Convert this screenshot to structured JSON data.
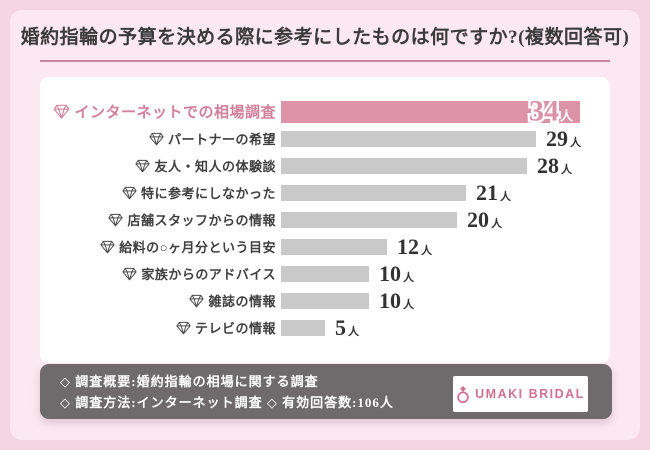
{
  "header": {
    "title": "婚約指輪の予算を決める際に参考にしたものは何ですか?(複数回答可)"
  },
  "chart_data": {
    "type": "bar",
    "orientation": "horizontal",
    "title": "婚約指輪の予算を決める際に参考にしたものは何ですか?(複数回答可)",
    "categories": [
      "インターネットでの相場調査",
      "パートナーの希望",
      "友人・知人の体験談",
      "特に参考にしなかった",
      "店舗スタッフからの情報",
      "給料の○ヶ月分という目安",
      "家族からのアドバイス",
      "雑誌の情報",
      "テレビの情報"
    ],
    "values": [
      34,
      29,
      28,
      21,
      20,
      12,
      10,
      10,
      5
    ],
    "unit": "人",
    "highlight_index": 0,
    "xlim": [
      0,
      34
    ],
    "legend_position": "none",
    "grid": false,
    "colors": {
      "highlight_bar": "#dc93a8",
      "bar": "#c9c9c9",
      "highlight_label": "#d2809b",
      "value_text": "#333333",
      "background": "#fbe8f0",
      "footer_background": "#6f6b6d"
    }
  },
  "footer": {
    "line1": "◇ 調査概要:婚約指輪の相場に関する調査",
    "line2": "◇ 調査方法:インターネット調査 ◇ 有効回答数:106人",
    "logo_text": "UMAKI BRIDAL"
  }
}
